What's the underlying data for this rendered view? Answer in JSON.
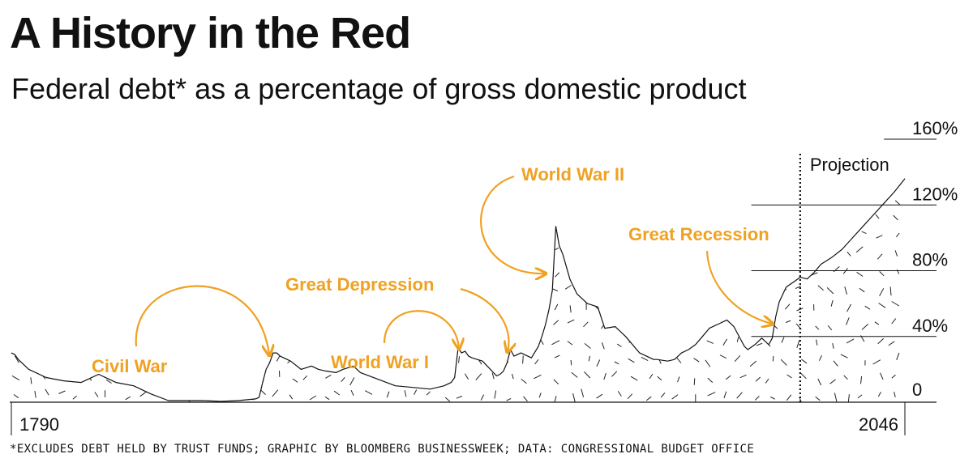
{
  "header": {
    "title": "A History in the Red",
    "subtitle": "Federal debt* as a percentage of gross domestic product"
  },
  "footnote": "*EXCLUDES DEBT HELD BY TRUST FUNDS; GRAPHIC BY BLOOMBERG BUSINESSWEEK; DATA: CONGRESSIONAL BUDGET OFFICE",
  "colors": {
    "line": "#111111",
    "annotation": "#f0a121",
    "background": "#ffffff"
  },
  "chart_data": {
    "type": "area",
    "title": "A History in the Red",
    "subtitle": "Federal debt* as a percentage of gross domestic product",
    "xlabel": "",
    "ylabel": "",
    "xlim": [
      1790,
      2046
    ],
    "ylim": [
      0,
      160
    ],
    "x_tick_labels": [
      "1790",
      "2046"
    ],
    "y_ticks": [
      {
        "value": 0,
        "label": "0"
      },
      {
        "value": 40,
        "label": "40%"
      },
      {
        "value": 80,
        "label": "80%"
      },
      {
        "value": 120,
        "label": "120%"
      },
      {
        "value": 160,
        "label": "160%"
      }
    ],
    "projection": {
      "start_year": 2016,
      "label": "Projection"
    },
    "series": [
      {
        "name": "Federal debt as % of GDP",
        "x": [
          1790,
          1791,
          1792,
          1795,
          1800,
          1805,
          1810,
          1812,
          1815,
          1820,
          1825,
          1830,
          1835,
          1840,
          1845,
          1850,
          1855,
          1860,
          1861,
          1862,
          1863,
          1864,
          1865,
          1866,
          1867,
          1870,
          1873,
          1876,
          1878,
          1880,
          1883,
          1885,
          1888,
          1890,
          1895,
          1900,
          1905,
          1910,
          1914,
          1916,
          1917,
          1918,
          1919,
          1920,
          1921,
          1922,
          1925,
          1929,
          1930,
          1931,
          1932,
          1933,
          1934,
          1936,
          1939,
          1941,
          1942,
          1943,
          1944,
          1945,
          1946,
          1947,
          1948,
          1950,
          1952,
          1955,
          1958,
          1960,
          1963,
          1966,
          1970,
          1974,
          1975,
          1978,
          1980,
          1982,
          1984,
          1986,
          1988,
          1990,
          1993,
          1995,
          1997,
          2000,
          2001,
          2003,
          2005,
          2007,
          2008,
          2009,
          2010,
          2012,
          2014,
          2016,
          2018,
          2020,
          2022,
          2025,
          2028,
          2031,
          2034,
          2037,
          2040,
          2043,
          2046
        ],
        "values": [
          30,
          29,
          26,
          20,
          15,
          13,
          12,
          14,
          17,
          12,
          10,
          5,
          1,
          1,
          1,
          0.5,
          1,
          2,
          3,
          12,
          20,
          24,
          30,
          30,
          28,
          25,
          20,
          22,
          20,
          19,
          18,
          20,
          22,
          18,
          14,
          10,
          9,
          8,
          10,
          12,
          15,
          33,
          30,
          31,
          28,
          27,
          25,
          16,
          17,
          19,
          24,
          32,
          28,
          30,
          27,
          34,
          40,
          47,
          56,
          68,
          107,
          95,
          90,
          75,
          66,
          60,
          58,
          45,
          46,
          40,
          30,
          26,
          26,
          25,
          26,
          30,
          32,
          35,
          40,
          45,
          48,
          50,
          46,
          34,
          32,
          35,
          39,
          35,
          39,
          52,
          61,
          70,
          73,
          76,
          75,
          79,
          84,
          88,
          93,
          100,
          107,
          114,
          121,
          128,
          136
        ]
      }
    ],
    "annotations": [
      {
        "label": "Civil War",
        "year": 1865
      },
      {
        "label": "World War I",
        "year": 1919
      },
      {
        "label": "Great Depression",
        "year": 1933
      },
      {
        "label": "World War II",
        "year": 1946
      },
      {
        "label": "Great Recession",
        "year": 2009
      }
    ]
  }
}
